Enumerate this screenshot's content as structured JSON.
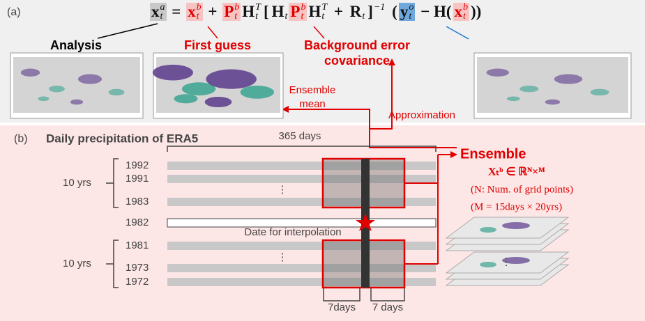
{
  "panel_a": {
    "label": "(a)",
    "equation": [
      {
        "base": "x",
        "sup": "a",
        "sub": "t",
        "bg": "#c8c8c8"
      },
      {
        "base": " = "
      },
      {
        "base": "x",
        "sup": "b",
        "sub": "t",
        "color": "#e00000",
        "bg": "#f7c4c4"
      },
      {
        "base": " + "
      },
      {
        "base": "P",
        "sup": "b",
        "sub": "t",
        "color": "#e00000",
        "bg": "#f7c4c4"
      },
      {
        "base": "H",
        "sup": "T",
        "sub": "t"
      },
      {
        "base": "["
      },
      {
        "base": "H",
        "sub": "t"
      },
      {
        "base": "P",
        "sup": "b",
        "sub": "t",
        "color": "#e00000",
        "bg": "#f7c4c4"
      },
      {
        "base": "H",
        "sup": "T",
        "sub": "t"
      },
      {
        "base": " + "
      },
      {
        "base": "R",
        "sub": "t"
      },
      {
        "base": "]",
        "sup": "−1"
      },
      {
        "base": " ("
      },
      {
        "base": "y",
        "sup": "o",
        "sub": "t",
        "bg": "#6fa8dc"
      },
      {
        "base": " − H("
      },
      {
        "base": "x",
        "sup": "b",
        "sub": "t",
        "color": "#e00000",
        "bg": "#f7c4c4"
      },
      {
        "base": "))"
      }
    ],
    "annotations": {
      "analysis": "Analysis",
      "first_guess": "First guess",
      "background_error_covariance": [
        "Background error",
        "covariance"
      ],
      "ensemble_mean": [
        "Ensemble",
        "mean"
      ],
      "approximation": "Approximation"
    }
  },
  "panel_b": {
    "label": "(b)",
    "title": "Daily precipitation of ERA5",
    "span_label": "365 days",
    "rows": [
      "1992",
      "1991",
      "⋮",
      "1983",
      "1982",
      "1981",
      "⋮",
      "1973",
      "1972"
    ],
    "group_labels": [
      "10 yrs",
      "10 yrs"
    ],
    "interpolation_label": "Date for interpolation",
    "window_labels": [
      "7days",
      "7 days"
    ],
    "ensemble": {
      "title": "Ensemble",
      "formula": "Xₜᵇ ∈ ℝᴺ×ᴹ",
      "notes": [
        "(N: Num. of grid points)",
        "(M = 15days × 20yrs)"
      ]
    }
  }
}
